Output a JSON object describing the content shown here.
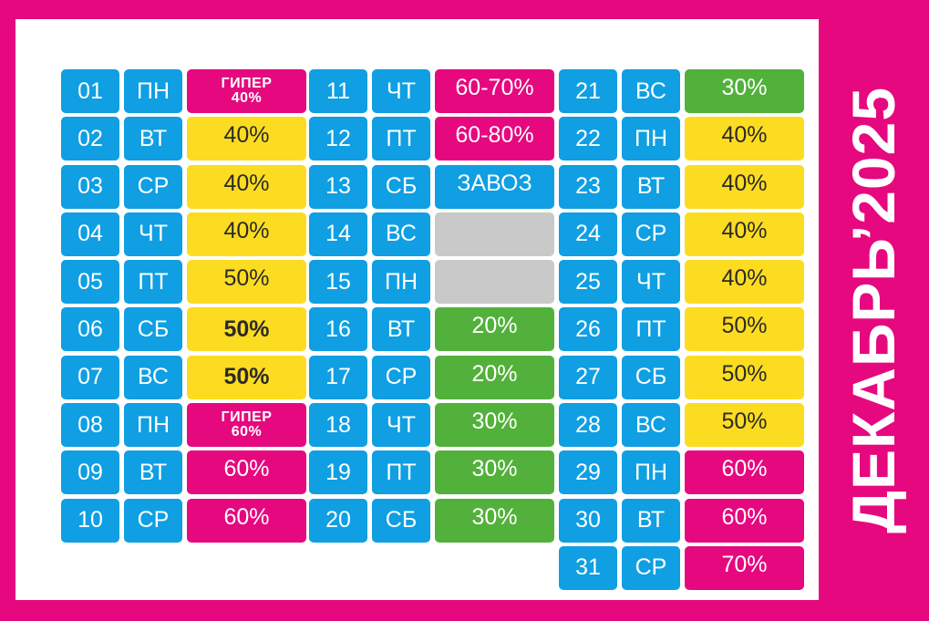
{
  "title": "ДЕКАБРЬ’2025",
  "colors": {
    "background": "#e6087f",
    "panel": "#ffffff",
    "blue": "#0f9fe2",
    "pink": "#e6087f",
    "yellow": "#fcdc21",
    "green": "#52b13a",
    "grey": "#c9c9c9"
  },
  "columns": [
    [
      {
        "num": "01",
        "day": "ПН",
        "value": "ГИПЕР",
        "value2": "40%",
        "color": "pink"
      },
      {
        "num": "02",
        "day": "ВТ",
        "value": "40%",
        "color": "yellow"
      },
      {
        "num": "03",
        "day": "СР",
        "value": "40%",
        "color": "yellow"
      },
      {
        "num": "04",
        "day": "ЧТ",
        "value": "40%",
        "color": "yellow"
      },
      {
        "num": "05",
        "day": "ПТ",
        "value": "50%",
        "color": "yellow"
      },
      {
        "num": "06",
        "day": "СБ",
        "value": "50%",
        "color": "yellow",
        "bold": true
      },
      {
        "num": "07",
        "day": "ВС",
        "value": "50%",
        "color": "yellow",
        "bold": true
      },
      {
        "num": "08",
        "day": "ПН",
        "value": "ГИПЕР",
        "value2": "60%",
        "color": "pink"
      },
      {
        "num": "09",
        "day": "ВТ",
        "value": "60%",
        "color": "pink"
      },
      {
        "num": "10",
        "day": "СР",
        "value": "60%",
        "color": "pink"
      }
    ],
    [
      {
        "num": "11",
        "day": "ЧТ",
        "value": "60-70%",
        "color": "pink"
      },
      {
        "num": "12",
        "day": "ПТ",
        "value": "60-80%",
        "color": "pink"
      },
      {
        "num": "13",
        "day": "СБ",
        "value": "ЗАВОЗ",
        "color": "blue"
      },
      {
        "num": "14",
        "day": "ВС",
        "value": "",
        "color": "grey"
      },
      {
        "num": "15",
        "day": "ПН",
        "value": "",
        "color": "grey"
      },
      {
        "num": "16",
        "day": "ВТ",
        "value": "20%",
        "color": "green"
      },
      {
        "num": "17",
        "day": "СР",
        "value": "20%",
        "color": "green"
      },
      {
        "num": "18",
        "day": "ЧТ",
        "value": "30%",
        "color": "green"
      },
      {
        "num": "19",
        "day": "ПТ",
        "value": "30%",
        "color": "green"
      },
      {
        "num": "20",
        "day": "СБ",
        "value": "30%",
        "color": "green"
      }
    ],
    [
      {
        "num": "21",
        "day": "ВС",
        "value": "30%",
        "color": "green"
      },
      {
        "num": "22",
        "day": "ПН",
        "value": "40%",
        "color": "yellow"
      },
      {
        "num": "23",
        "day": "ВТ",
        "value": "40%",
        "color": "yellow"
      },
      {
        "num": "24",
        "day": "СР",
        "value": "40%",
        "color": "yellow"
      },
      {
        "num": "25",
        "day": "ЧТ",
        "value": "40%",
        "color": "yellow"
      },
      {
        "num": "26",
        "day": "ПТ",
        "value": "50%",
        "color": "yellow"
      },
      {
        "num": "27",
        "day": "СБ",
        "value": "50%",
        "color": "yellow"
      },
      {
        "num": "28",
        "day": "ВС",
        "value": "50%",
        "color": "yellow"
      },
      {
        "num": "29",
        "day": "ПН",
        "value": "60%",
        "color": "pink"
      },
      {
        "num": "30",
        "day": "ВТ",
        "value": "60%",
        "color": "pink"
      },
      {
        "num": "31",
        "day": "СР",
        "value": "70%",
        "color": "pink"
      }
    ]
  ]
}
